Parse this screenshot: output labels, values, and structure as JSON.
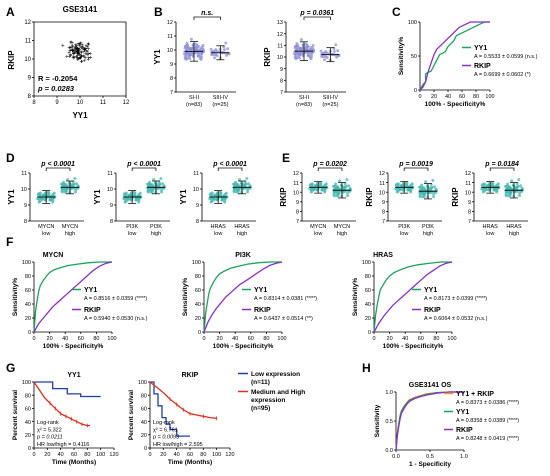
{
  "panel_letters": [
    "A",
    "B",
    "C",
    "D",
    "E",
    "F",
    "G",
    "H"
  ],
  "colors": {
    "teal": "#46b8b0",
    "lavender": "#8f8fd6",
    "green": "#1aa45a",
    "purple": "#8b2fc9",
    "orange": "#f29a2e",
    "red": "#e0301e",
    "blue": "#1d3fa8",
    "scatter_orange": "#f0923a"
  },
  "chart_data": [
    {
      "id": "A",
      "type": "scatter",
      "title": "GSE3141",
      "xlabel": "YY1",
      "ylabel": "RKIP",
      "xlim": [
        8,
        12
      ],
      "ylim": [
        8,
        12
      ],
      "xticks": [
        "8",
        "9",
        "10",
        "11",
        "12"
      ],
      "yticks": [
        "8",
        "9",
        "10",
        "11",
        "12"
      ],
      "annotations": [
        "R = -0.2054",
        "p = 0.0283"
      ]
    },
    {
      "id": "B1",
      "type": "scatter",
      "ylabel": "YY1",
      "ylim": [
        7,
        12
      ],
      "yticks": [
        "7",
        "8",
        "9",
        "10",
        "11",
        "12"
      ],
      "categories": [
        "SI-II (n=83)",
        "SIII-IV (n=25)"
      ],
      "category_lines": [
        [
          "SI-II",
          "(n=83)"
        ],
        [
          "SIII-IV",
          "(n=25)"
        ]
      ],
      "means": [
        9.9,
        9.8
      ],
      "sd": [
        0.7,
        0.5
      ],
      "n": [
        83,
        25
      ],
      "significance": "n.s."
    },
    {
      "id": "B2",
      "type": "scatter",
      "ylabel": "RKIP",
      "ylim": [
        7,
        13
      ],
      "yticks": [
        "7",
        "8",
        "9",
        "10",
        "11",
        "12",
        "13"
      ],
      "categories": [
        "SI-II (n=83)",
        "SIII-IV (n=25)"
      ],
      "category_lines": [
        [
          "SI-II",
          "(n=83)"
        ],
        [
          "SIII-IV",
          "(n=25)"
        ]
      ],
      "means": [
        10.5,
        10.2
      ],
      "sd": [
        0.8,
        0.6
      ],
      "n": [
        83,
        25
      ],
      "significance": "p = 0.0361"
    },
    {
      "id": "C",
      "type": "line",
      "xlabel": "100% - Specificity%",
      "ylabel": "Sensitivity%",
      "xlim": [
        0,
        100
      ],
      "ylim": [
        0,
        100
      ],
      "xticks": [
        "0",
        "20",
        "40",
        "60",
        "80",
        "100"
      ],
      "yticks": [
        "0",
        "50",
        "100"
      ],
      "legend": [
        {
          "name": "YY1",
          "stat": "A = 0.5533 ± 0.0599 (n.s.)"
        },
        {
          "name": "RKIP",
          "stat": "A = 0.6699 ± 0.0602 (*)"
        }
      ],
      "series": [
        {
          "name": "YY1",
          "x": [
            0,
            4,
            8,
            8,
            16,
            20,
            24,
            28,
            36,
            40,
            48,
            52,
            60,
            68,
            76,
            84,
            92,
            100
          ],
          "y": [
            0,
            8,
            12,
            24,
            28,
            36,
            44,
            52,
            56,
            64,
            72,
            80,
            84,
            88,
            92,
            96,
            100,
            100
          ]
        },
        {
          "name": "RKIP",
          "x": [
            0,
            4,
            8,
            12,
            16,
            20,
            24,
            32,
            40,
            48,
            56,
            64,
            72,
            80,
            100
          ],
          "y": [
            0,
            4,
            12,
            28,
            40,
            52,
            60,
            68,
            76,
            84,
            92,
            96,
            100,
            100,
            100
          ]
        }
      ]
    },
    {
      "id": "D1",
      "type": "scatter",
      "ylabel": "YY1",
      "ylim": [
        8,
        11
      ],
      "yticks": [
        "8",
        "9",
        "10",
        "11"
      ],
      "categories": [
        "MYCN low",
        "MYCN high"
      ],
      "category_lines": [
        [
          "MYCN",
          "low"
        ],
        [
          "MYCN",
          "high"
        ]
      ],
      "means": [
        9.5,
        10.1
      ],
      "sd": [
        0.4,
        0.4
      ],
      "significance": "p < 0.0001"
    },
    {
      "id": "D2",
      "type": "scatter",
      "ylabel": "YY1",
      "ylim": [
        8,
        11
      ],
      "yticks": [
        "8",
        "9",
        "10",
        "11"
      ],
      "categories": [
        "PI3K low",
        "PI3K high"
      ],
      "category_lines": [
        [
          "PI3K",
          "low"
        ],
        [
          "PI3K",
          "high"
        ]
      ],
      "means": [
        9.5,
        10.1
      ],
      "sd": [
        0.4,
        0.4
      ],
      "significance": "p < 0.0001"
    },
    {
      "id": "D3",
      "type": "scatter",
      "ylabel": "YY1",
      "ylim": [
        8,
        11
      ],
      "yticks": [
        "8",
        "9",
        "10",
        "11"
      ],
      "categories": [
        "HRAS low",
        "HRAS high"
      ],
      "category_lines": [
        [
          "HRAS",
          "low"
        ],
        [
          "HRAS",
          "high"
        ]
      ],
      "means": [
        9.5,
        10.1
      ],
      "sd": [
        0.4,
        0.4
      ],
      "significance": "p < 0.0001"
    },
    {
      "id": "E1",
      "type": "scatter",
      "ylabel": "RKIP",
      "ylim": [
        7,
        12
      ],
      "yticks": [
        "7",
        "8",
        "9",
        "10",
        "11",
        "12"
      ],
      "categories": [
        "MYCN low",
        "MYCN high"
      ],
      "category_lines": [
        [
          "MYCN",
          "low"
        ],
        [
          "MYCN",
          "high"
        ]
      ],
      "means": [
        10.5,
        10.2
      ],
      "sd": [
        0.6,
        0.8
      ],
      "significance": "p = 0.0202"
    },
    {
      "id": "E2",
      "type": "scatter",
      "ylabel": "RKIP",
      "ylim": [
        7,
        12
      ],
      "yticks": [
        "7",
        "8",
        "9",
        "10",
        "11",
        "12"
      ],
      "categories": [
        "PI3K low",
        "PI3K high"
      ],
      "category_lines": [
        [
          "PI3K",
          "low"
        ],
        [
          "PI3K",
          "high"
        ]
      ],
      "means": [
        10.5,
        10.1
      ],
      "sd": [
        0.6,
        0.8
      ],
      "significance": "p = 0.0019"
    },
    {
      "id": "E3",
      "type": "scatter",
      "ylabel": "RKIP",
      "ylim": [
        7,
        12
      ],
      "yticks": [
        "7",
        "8",
        "9",
        "10",
        "11",
        "12"
      ],
      "categories": [
        "HRAS low",
        "HRAS high"
      ],
      "category_lines": [
        [
          "HRAS",
          "low"
        ],
        [
          "HRAS",
          "high"
        ]
      ],
      "means": [
        10.5,
        10.2
      ],
      "sd": [
        0.6,
        0.8
      ],
      "significance": "p = 0.0184"
    },
    {
      "id": "F1",
      "type": "line",
      "title": "MYCN",
      "xlabel": "100% - Specificity%",
      "ylabel": "Sensitivity%",
      "xlim": [
        0,
        100
      ],
      "ylim": [
        0,
        100
      ],
      "xticks": [
        "0",
        "20",
        "40",
        "60",
        "80",
        "100"
      ],
      "yticks": [
        "0",
        "20",
        "40",
        "60",
        "80",
        "100"
      ],
      "legend": [
        {
          "name": "YY1",
          "stat": "A = 0.8516 ± 0.0359 (****)"
        },
        {
          "name": "RKIP",
          "stat": "A = 0.5940 ± 0.0530 (n.s.)"
        }
      ],
      "series": [
        {
          "name": "YY1",
          "x": [
            0,
            2,
            4,
            6,
            8,
            12,
            16,
            20,
            26,
            34,
            44,
            56,
            70,
            85,
            100
          ],
          "y": [
            0,
            30,
            45,
            58,
            66,
            74,
            80,
            85,
            89,
            92,
            95,
            97,
            99,
            100,
            100
          ]
        },
        {
          "name": "RKIP",
          "x": [
            0,
            6,
            12,
            18,
            24,
            30,
            36,
            42,
            48,
            54,
            60,
            68,
            76,
            84,
            92,
            100
          ],
          "y": [
            0,
            12,
            20,
            28,
            36,
            42,
            48,
            54,
            60,
            66,
            72,
            80,
            88,
            94,
            98,
            100
          ]
        }
      ]
    },
    {
      "id": "F2",
      "type": "line",
      "title": "PI3K",
      "xlabel": "100% - Specificity%",
      "ylabel": "Sensitivity%",
      "xlim": [
        0,
        100
      ],
      "ylim": [
        0,
        100
      ],
      "xticks": [
        "0",
        "20",
        "40",
        "60",
        "80",
        "100"
      ],
      "yticks": [
        "0",
        "20",
        "40",
        "60",
        "80",
        "100"
      ],
      "legend": [
        {
          "name": "YY1",
          "stat": "A = 0.8314 ± 0.0381 (****)"
        },
        {
          "name": "RKIP",
          "stat": "A = 0.6437 ± 0.0514 (**)"
        }
      ],
      "series": [
        {
          "name": "YY1",
          "x": [
            0,
            2,
            4,
            6,
            8,
            12,
            16,
            20,
            26,
            34,
            44,
            56,
            70,
            85,
            100
          ],
          "y": [
            0,
            26,
            40,
            54,
            62,
            71,
            78,
            83,
            87,
            91,
            94,
            97,
            99,
            100,
            100
          ]
        },
        {
          "name": "RKIP",
          "x": [
            0,
            5,
            10,
            16,
            22,
            28,
            34,
            40,
            46,
            52,
            60,
            68,
            76,
            84,
            92,
            100
          ],
          "y": [
            0,
            14,
            24,
            34,
            42,
            50,
            56,
            62,
            68,
            72,
            78,
            84,
            90,
            95,
            98,
            100
          ]
        }
      ]
    },
    {
      "id": "F3",
      "type": "line",
      "title": "HRAS",
      "xlabel": "100% - Specificity%",
      "ylabel": "Sensitivity%",
      "xlim": [
        0,
        100
      ],
      "ylim": [
        0,
        100
      ],
      "xticks": [
        "0",
        "20",
        "40",
        "60",
        "80",
        "100"
      ],
      "yticks": [
        "0",
        "20",
        "40",
        "60",
        "80",
        "100"
      ],
      "legend": [
        {
          "name": "YY1",
          "stat": "A = 0.8173 ± 0.0399 (****)"
        },
        {
          "name": "RKIP",
          "stat": "A = 0.6064 ± 0.0532 (n.s.)"
        }
      ],
      "series": [
        {
          "name": "YY1",
          "x": [
            0,
            2,
            4,
            6,
            8,
            12,
            16,
            20,
            26,
            34,
            44,
            56,
            70,
            85,
            100
          ],
          "y": [
            0,
            24,
            38,
            50,
            60,
            68,
            75,
            80,
            85,
            89,
            93,
            96,
            98,
            100,
            100
          ]
        },
        {
          "name": "RKIP",
          "x": [
            0,
            6,
            12,
            18,
            24,
            30,
            36,
            42,
            48,
            54,
            60,
            68,
            76,
            84,
            92,
            100
          ],
          "y": [
            0,
            12,
            22,
            30,
            38,
            44,
            50,
            56,
            62,
            68,
            74,
            82,
            88,
            94,
            98,
            100
          ]
        }
      ]
    },
    {
      "id": "G1",
      "type": "line",
      "title": "YY1",
      "xlabel": "Time (Months)",
      "ylabel": "Percent survival",
      "xlim": [
        0,
        120
      ],
      "ylim": [
        0,
        100
      ],
      "xticks": [
        "0",
        "20",
        "40",
        "60",
        "80",
        "100",
        "120"
      ],
      "yticks": [
        "0",
        "20",
        "40",
        "60",
        "80",
        "100"
      ],
      "stats": [
        "Log-rank",
        "χ² = 5.322",
        "p = 0.0211",
        "HR low/high = 0.4116"
      ],
      "series": [
        {
          "name": "Low expression",
          "x": [
            0,
            28,
            28,
            50,
            50,
            70,
            70,
            100
          ],
          "y": [
            100,
            100,
            90,
            90,
            82,
            82,
            78,
            78
          ]
        },
        {
          "name": "Medium and High expression",
          "x": [
            0,
            4,
            8,
            12,
            16,
            20,
            24,
            28,
            32,
            36,
            40,
            44,
            48,
            52,
            56,
            60,
            64,
            68,
            72,
            76,
            80,
            84
          ],
          "y": [
            100,
            94,
            88,
            82,
            76,
            72,
            68,
            64,
            60,
            56,
            52,
            50,
            48,
            46,
            44,
            42,
            40,
            38,
            36,
            35,
            34,
            34
          ]
        }
      ]
    },
    {
      "id": "G2",
      "type": "line",
      "title": "RKIP",
      "xlabel": "Time (Months)",
      "ylabel": "Percent survival",
      "xlim": [
        0,
        120
      ],
      "ylim": [
        0,
        100
      ],
      "xticks": [
        "0",
        "20",
        "40",
        "60",
        "80",
        "100",
        "120"
      ],
      "yticks": [
        "0",
        "20",
        "40",
        "60",
        "80",
        "100"
      ],
      "stats": [
        "Log-rank",
        "χ² = 6.761",
        "p = 0.0093",
        "HR low/high = 2.595"
      ],
      "series": [
        {
          "name": "Low expression",
          "x": [
            0,
            6,
            6,
            12,
            12,
            18,
            18,
            24,
            24,
            30,
            30,
            40,
            40,
            60
          ],
          "y": [
            100,
            100,
            82,
            82,
            64,
            64,
            46,
            46,
            36,
            36,
            28,
            28,
            18,
            18
          ]
        },
        {
          "name": "Medium and High expression",
          "x": [
            0,
            5,
            10,
            15,
            20,
            25,
            30,
            35,
            40,
            45,
            50,
            55,
            60,
            70,
            80,
            90,
            100
          ],
          "y": [
            100,
            96,
            92,
            88,
            84,
            79,
            74,
            70,
            66,
            62,
            58,
            55,
            52,
            50,
            48,
            46,
            45
          ]
        }
      ]
    },
    {
      "id": "H",
      "type": "line",
      "title": "GSE3141 OS",
      "xlabel": "1 - Specificity",
      "ylabel": "Sensitivity",
      "xlim": [
        0,
        1
      ],
      "ylim": [
        0,
        1
      ],
      "xticks": [
        "0.0",
        "0.5",
        "1.0"
      ],
      "yticks": [
        "0.0",
        "0.5",
        "1.0"
      ],
      "legend": [
        {
          "name": "YY1 + RKIP",
          "stat": "A = 0.8373 ± 0.0386 (****)"
        },
        {
          "name": "YY1",
          "stat": "A = 0.8358 ± 0.0389 (****)"
        },
        {
          "name": "RKIP",
          "stat": "A = 0.8248 ± 0.0419 (****)"
        }
      ],
      "series": [
        {
          "name": "YY1 + RKIP",
          "x": [
            0,
            0.02,
            0.04,
            0.06,
            0.08,
            0.12,
            0.16,
            0.2,
            0.28,
            0.36,
            0.46,
            0.6,
            0.78,
            1
          ],
          "y": [
            0,
            0.3,
            0.46,
            0.6,
            0.68,
            0.76,
            0.82,
            0.87,
            0.91,
            0.94,
            0.97,
            0.99,
            1,
            1
          ]
        },
        {
          "name": "YY1",
          "x": [
            0,
            0.02,
            0.04,
            0.06,
            0.08,
            0.12,
            0.16,
            0.2,
            0.28,
            0.36,
            0.46,
            0.6,
            0.78,
            1
          ],
          "y": [
            0,
            0.28,
            0.44,
            0.58,
            0.67,
            0.75,
            0.81,
            0.86,
            0.9,
            0.93,
            0.96,
            0.99,
            1,
            1
          ]
        },
        {
          "name": "RKIP",
          "x": [
            0,
            0.02,
            0.04,
            0.06,
            0.08,
            0.12,
            0.16,
            0.2,
            0.28,
            0.36,
            0.46,
            0.6,
            0.78,
            1
          ],
          "y": [
            0,
            0.25,
            0.4,
            0.54,
            0.63,
            0.72,
            0.79,
            0.84,
            0.89,
            0.92,
            0.95,
            0.98,
            1,
            1
          ]
        }
      ]
    }
  ],
  "g_legend": [
    {
      "label": "Low expression",
      "count": "(n=11)"
    },
    {
      "label": "Medium and High",
      "count": "expression",
      "extra": "(n=95)"
    }
  ]
}
